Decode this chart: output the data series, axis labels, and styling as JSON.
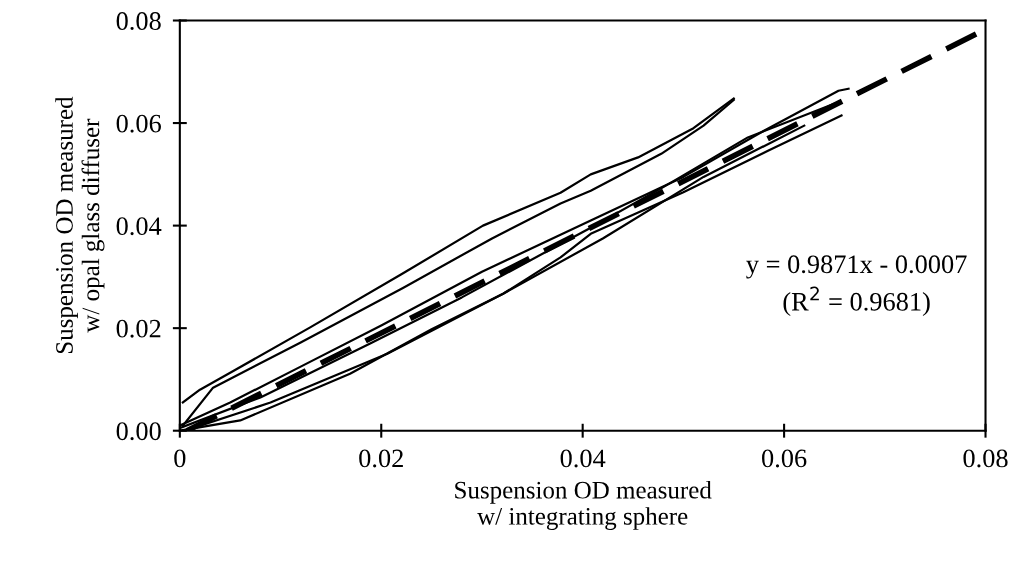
{
  "chart_data": {
    "type": "line",
    "xlabel": "Suspension OD measured\nw/ integrating sphere",
    "ylabel": "Suspension OD measured\nw/ opal glass diffuser",
    "xlim": [
      0,
      0.08
    ],
    "ylim": [
      0,
      0.08
    ],
    "xticks": [
      0,
      0.02,
      0.04,
      0.06,
      0.08
    ],
    "yticks": [
      {
        "value": 0,
        "label": "0.00"
      },
      0.02,
      0.04,
      0.06,
      0.08
    ],
    "grid": false,
    "legend": false,
    "marker": "none",
    "annotations": [
      "y = 0.9871x - 0.0007",
      "(R$^{2}$ = 0.9681)"
    ],
    "series": [
      {
        "color": "#000000",
        "line_style": "solid",
        "x": [
          0.0003,
          0.002,
          0.005,
          0.0129,
          0.022,
          0.0301,
          0.0378,
          0.0408,
          0.0455,
          0.051,
          0.055
        ],
        "values": [
          0.0055,
          0.008,
          0.0113,
          0.0201,
          0.0305,
          0.04,
          0.0464,
          0.05,
          0.0533,
          0.059,
          0.0648
        ]
      },
      {
        "color": "#000000",
        "line_style": "solid",
        "x": [
          0.0003,
          0.0033,
          0.012,
          0.0222,
          0.031,
          0.0378,
          0.0408,
          0.0478,
          0.052,
          0.055
        ],
        "values": [
          0.001,
          0.0084,
          0.0172,
          0.0279,
          0.0375,
          0.0443,
          0.0468,
          0.054,
          0.0595,
          0.0645
        ]
      },
      {
        "color": "#000000",
        "line_style": "solid",
        "x": [
          0,
          0.005,
          0.012,
          0.02,
          0.03,
          0.0408,
          0.05,
          0.058,
          0.0654,
          0.0664
        ],
        "values": [
          0.001,
          0.0055,
          0.0125,
          0.0205,
          0.031,
          0.041,
          0.0495,
          0.0585,
          0.0663,
          0.0667
        ]
      },
      {
        "color": "#000000",
        "line_style": "solid",
        "x": [
          0,
          0.006,
          0.0169,
          0.025,
          0.0321,
          0.0378,
          0.0408,
          0.05,
          0.0584,
          0.0657
        ],
        "values": [
          0,
          0.002,
          0.0111,
          0.0198,
          0.0267,
          0.0338,
          0.0384,
          0.0465,
          0.0546,
          0.0615
        ]
      },
      {
        "color": "#000000",
        "line_style": "solid",
        "x": [
          0,
          0.008,
          0.0189,
          0.028,
          0.0408,
          0.048,
          0.0564,
          0.065
        ],
        "values": [
          0.0005,
          0.0065,
          0.017,
          0.026,
          0.0396,
          0.0475,
          0.0572,
          0.0638
        ]
      },
      {
        "color": "#000000",
        "line_style": "solid",
        "x": [
          0.001,
          0.009,
          0.0206,
          0.0321,
          0.042,
          0.052,
          0.062
        ],
        "values": [
          0.0003,
          0.0055,
          0.015,
          0.0267,
          0.0375,
          0.0495,
          0.0595
        ]
      },
      {
        "color": "#000000",
        "line_style": "dashed",
        "x": [
          0.0007,
          0.08
        ],
        "values": [
          0,
          0.0783
        ]
      }
    ]
  }
}
